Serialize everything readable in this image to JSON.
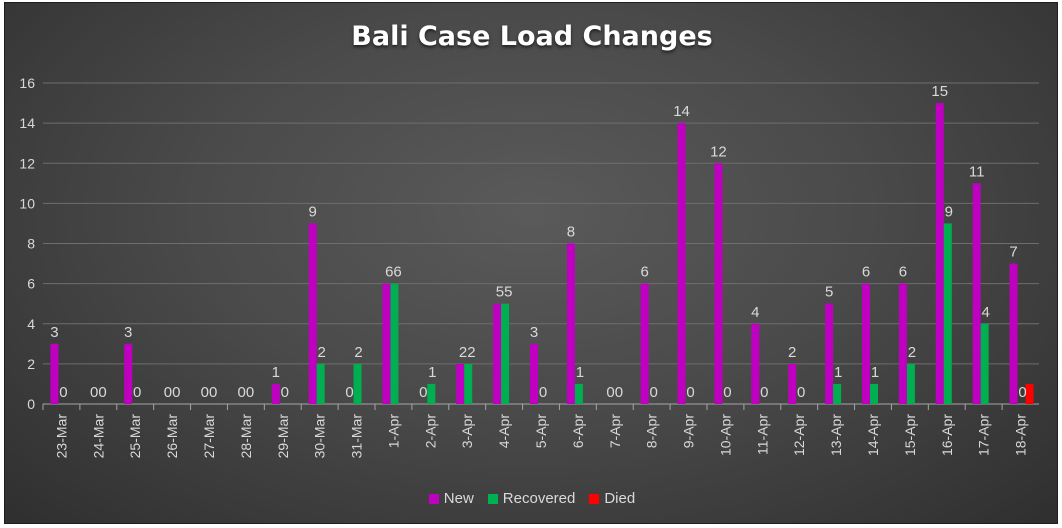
{
  "chart_data": {
    "type": "bar",
    "title": "Bali Case Load Changes",
    "xlabel": "",
    "ylabel": "",
    "ylim": [
      0,
      16
    ],
    "yticks": [
      0,
      2,
      4,
      6,
      8,
      10,
      12,
      14,
      16
    ],
    "grid": true,
    "legend_position": "bottom",
    "categories": [
      "23-Mar",
      "24-Mar",
      "25-Mar",
      "26-Mar",
      "27-Mar",
      "28-Mar",
      "29-Mar",
      "30-Mar",
      "31-Mar",
      "1-Apr",
      "2-Apr",
      "3-Apr",
      "4-Apr",
      "5-Apr",
      "6-Apr",
      "7-Apr",
      "8-Apr",
      "9-Apr",
      "10-Apr",
      "11-Apr",
      "12-Apr",
      "13-Apr",
      "14-Apr",
      "15-Apr",
      "16-Apr",
      "17-Apr",
      "18-Apr"
    ],
    "series": [
      {
        "name": "New",
        "color": "#c000c0",
        "values": [
          3,
          0,
          3,
          0,
          0,
          0,
          1,
          9,
          0,
          6,
          0,
          2,
          5,
          3,
          8,
          0,
          6,
          14,
          12,
          4,
          2,
          5,
          6,
          6,
          15,
          11,
          7
        ]
      },
      {
        "name": "Recovered",
        "color": "#00b050",
        "values": [
          0,
          0,
          0,
          0,
          0,
          0,
          0,
          2,
          2,
          6,
          1,
          2,
          5,
          0,
          1,
          0,
          0,
          0,
          0,
          0,
          0,
          1,
          1,
          2,
          9,
          4,
          null
        ]
      },
      {
        "name": "Died",
        "color": "#ff0000",
        "values": [
          null,
          null,
          null,
          null,
          null,
          null,
          null,
          null,
          null,
          null,
          null,
          null,
          null,
          null,
          null,
          null,
          null,
          null,
          null,
          null,
          null,
          null,
          null,
          null,
          null,
          null,
          1
        ]
      }
    ],
    "data_labels": [
      [
        "3",
        "0"
      ],
      [
        "00"
      ],
      [
        "3",
        "0"
      ],
      [
        "00"
      ],
      [
        "00"
      ],
      [
        "00"
      ],
      [
        "1",
        "0"
      ],
      [
        "9",
        "2"
      ],
      [
        "0",
        "2"
      ],
      [
        "66"
      ],
      [
        "0",
        "1"
      ],
      [
        "22"
      ],
      [
        "55"
      ],
      [
        "3",
        "0"
      ],
      [
        "8",
        "1"
      ],
      [
        "00"
      ],
      [
        "6",
        "0"
      ],
      [
        "14",
        "0"
      ],
      [
        "12",
        "0"
      ],
      [
        "4",
        "0"
      ],
      [
        "2",
        "0"
      ],
      [
        "5",
        "1"
      ],
      [
        "6",
        "1"
      ],
      [
        "6",
        "2"
      ],
      [
        "15",
        "9"
      ],
      [
        "11",
        "4"
      ],
      [
        "7",
        "0"
      ]
    ]
  }
}
